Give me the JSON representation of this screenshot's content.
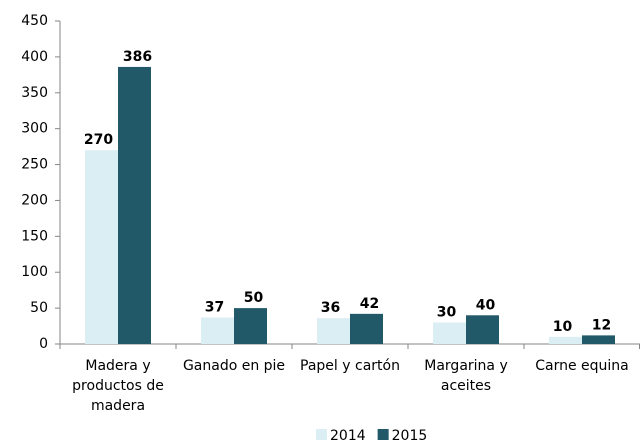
{
  "chart_data": {
    "type": "bar",
    "categories": [
      "Madera y productos de madera",
      "Ganado en pie",
      "Papel y cartón",
      "Margarina y aceites",
      "Carne equina"
    ],
    "series": [
      {
        "name": "2014",
        "color": "#daeef3",
        "values": [
          270,
          37,
          36,
          30,
          10
        ]
      },
      {
        "name": "2015",
        "color": "#215968",
        "values": [
          386,
          50,
          42,
          40,
          12
        ]
      }
    ],
    "ylim": [
      0,
      450
    ],
    "yticks": [
      0,
      50,
      100,
      150,
      200,
      250,
      300,
      350,
      400,
      450
    ],
    "legend": "bottom"
  }
}
